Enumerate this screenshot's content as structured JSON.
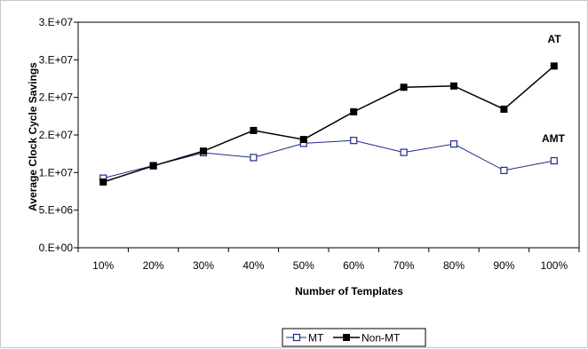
{
  "chart_data": {
    "type": "line",
    "title": "",
    "xlabel": "Number of Templates",
    "ylabel": "Average Clock Cycle Savings",
    "categories": [
      "10%",
      "20%",
      "30%",
      "40%",
      "50%",
      "60%",
      "70%",
      "80%",
      "90%",
      "100%"
    ],
    "y_ticks": [
      "0.E+00",
      "5.E+06",
      "1.E+07",
      "2.E+07",
      "2.E+07",
      "3.E+07",
      "3.E+07"
    ],
    "ylim": [
      0,
      35000000
    ],
    "grid": false,
    "legend_position": "bottom",
    "series": [
      {
        "name": "MT",
        "color": "#1f2a8a",
        "marker": "open-square",
        "values": [
          10800000,
          12750000,
          14750000,
          14000000,
          16200000,
          16650000,
          14800000,
          16100000,
          12000000,
          13500000
        ]
      },
      {
        "name": "Non-MT",
        "color": "#000000",
        "marker": "filled-square",
        "values": [
          10200000,
          12700000,
          15000000,
          18200000,
          16800000,
          21100000,
          24900000,
          25100000,
          21500000,
          28200000
        ]
      }
    ],
    "annotations": [
      "AT",
      "AMT"
    ]
  }
}
